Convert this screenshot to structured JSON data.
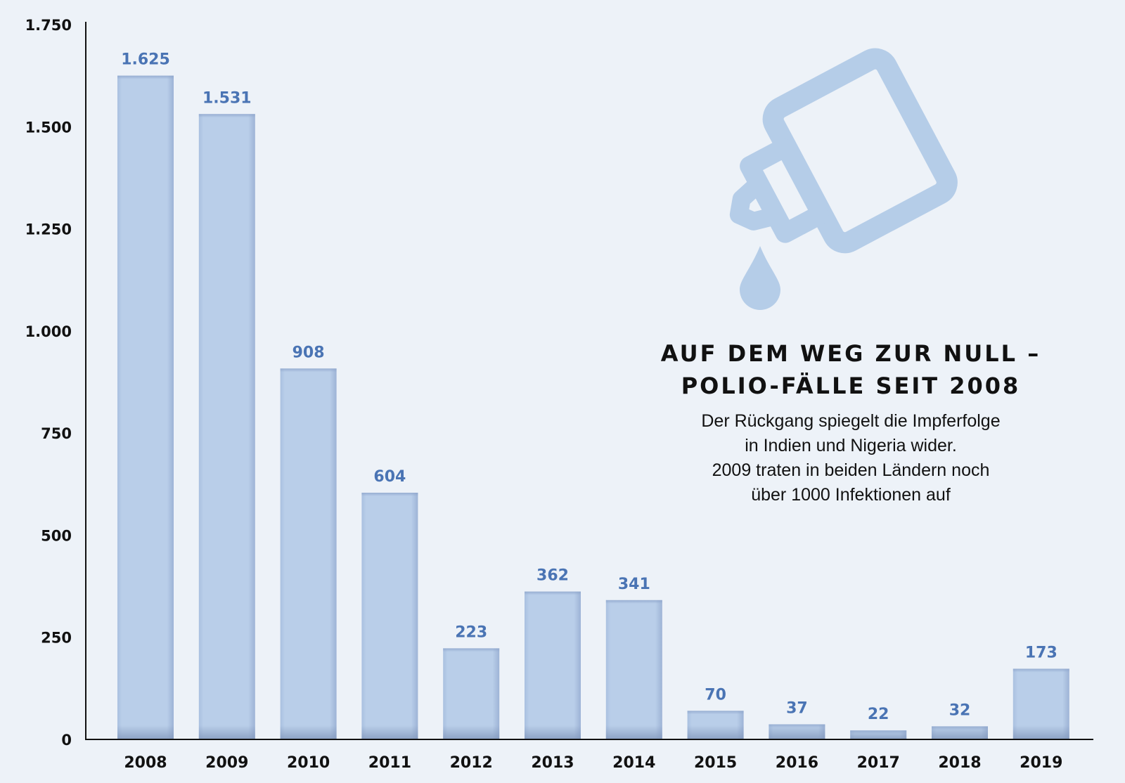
{
  "title": {
    "line1": "AUF DEM WEG ZUR NULL –",
    "line2": "POLIO-FÄLLE SEIT 2008"
  },
  "subtitle": {
    "line1": "Der Rückgang spiegelt die Impferfolge",
    "line2": "in Indien und Nigeria wider.",
    "line3": "2009 traten in beiden Ländern noch",
    "line4": "über 1000 Infektionen auf"
  },
  "colors": {
    "background": "#edf2f8",
    "bar": "#b8cde8",
    "data_label": "#4a74b4",
    "icon": "#b5cde8",
    "text": "#111111"
  },
  "icon": {
    "name": "vaccine-dropper-icon"
  },
  "chart_data": {
    "type": "bar",
    "categories": [
      "2008",
      "2009",
      "2010",
      "2011",
      "2012",
      "2013",
      "2014",
      "2015",
      "2016",
      "2017",
      "2018",
      "2019"
    ],
    "values": [
      1625,
      1531,
      908,
      604,
      223,
      362,
      341,
      70,
      37,
      22,
      32,
      173
    ],
    "data_labels": [
      "1.625",
      "1.531",
      "908",
      "604",
      "223",
      "362",
      "341",
      "70",
      "37",
      "22",
      "32",
      "173"
    ],
    "yticks": [
      0,
      250,
      500,
      750,
      1000,
      1250,
      1500,
      1750
    ],
    "ytick_labels": [
      "0",
      "250",
      "500",
      "750",
      "1.000",
      "1.250",
      "1.500",
      "1.750"
    ],
    "ylim": [
      0,
      1750
    ],
    "grid": false,
    "legend": "none"
  }
}
